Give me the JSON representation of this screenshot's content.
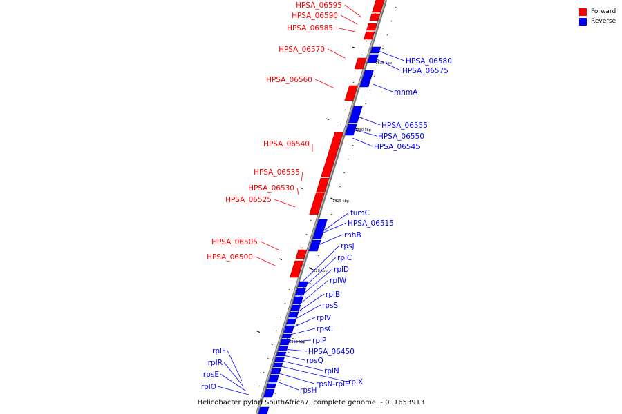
{
  "legend": {
    "forward_label": "Forward",
    "reverse_label": "Reverse",
    "forward_color": "#ff0000",
    "reverse_color": "#0000ff"
  },
  "caption": "Helicobacter pylori SouthAfrica7, complete genome. - 0..1653913",
  "scale_ticks": [
    {
      "label": "1335 kbp"
    },
    {
      "label": "1330 kbp"
    },
    {
      "label": "1325 kbp"
    },
    {
      "label": "1320 kbp"
    },
    {
      "label": "1315 kbp"
    }
  ],
  "forward_genes": [
    {
      "label": "HPSA_06595"
    },
    {
      "label": "HPSA_06590"
    },
    {
      "label": "HPSA_06585"
    },
    {
      "label": "HPSA_06570"
    },
    {
      "label": "HPSA_06560"
    },
    {
      "label": "HPSA_06540"
    },
    {
      "label": "HPSA_06535"
    },
    {
      "label": "HPSA_06530"
    },
    {
      "label": "HPSA_06525"
    },
    {
      "label": "HPSA_06505"
    },
    {
      "label": "HPSA_06500"
    }
  ],
  "reverse_genes": [
    {
      "label": "HPSA_06580"
    },
    {
      "label": "HPSA_06575"
    },
    {
      "label": "mnmA"
    },
    {
      "label": "HPSA_06555"
    },
    {
      "label": "HPSA_06550"
    },
    {
      "label": "HPSA_06545"
    },
    {
      "label": "fumC"
    },
    {
      "label": "HPSA_06515"
    },
    {
      "label": "rnhB"
    },
    {
      "label": "rpsJ"
    },
    {
      "label": "rplC"
    },
    {
      "label": "rplD"
    },
    {
      "label": "rplW"
    },
    {
      "label": "rplB"
    },
    {
      "label": "rpsS"
    },
    {
      "label": "rplV"
    },
    {
      "label": "rpsC"
    },
    {
      "label": "rplP"
    },
    {
      "label": "HPSA_06450"
    },
    {
      "label": "rpsQ"
    },
    {
      "label": "rplN"
    },
    {
      "label": "rplX"
    },
    {
      "label": "rpsN-rplE"
    },
    {
      "label": "rpsH"
    },
    {
      "label": "rplF"
    },
    {
      "label": "rplR"
    },
    {
      "label": "rpsE"
    },
    {
      "label": "rplO"
    }
  ]
}
